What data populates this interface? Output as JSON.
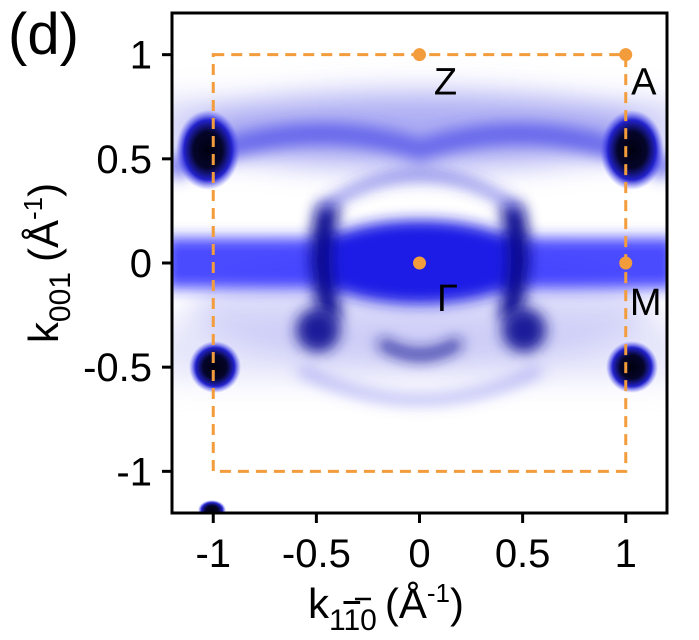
{
  "panel_label": "(d)",
  "chart_data": {
    "type": "heatmap",
    "title": "",
    "xlabel": {
      "prefix": "k",
      "subscript": "1",
      "subscript_overlined": "1",
      "subscript_suffix": "0",
      "units_open": "(Å",
      "units_exponent": "-1",
      "units_close": ")"
    },
    "ylabel": {
      "prefix": "k",
      "subscript": "001",
      "units_open": "(Å",
      "units_exponent": "-1",
      "units_close": ")"
    },
    "xlim": [
      -1.2,
      1.2
    ],
    "ylim": [
      -1.2,
      1.2
    ],
    "xticks": [
      {
        "value": -1,
        "label": "-1"
      },
      {
        "value": -0.5,
        "label": "-0.5"
      },
      {
        "value": 0,
        "label": "0"
      },
      {
        "value": 0.5,
        "label": "0.5"
      },
      {
        "value": 1,
        "label": "1"
      }
    ],
    "yticks": [
      {
        "value": 1,
        "label": "1"
      },
      {
        "value": 0.5,
        "label": "0.5"
      },
      {
        "value": 0,
        "label": "0"
      },
      {
        "value": -0.5,
        "label": "-0.5"
      },
      {
        "value": -1,
        "label": "-1"
      }
    ],
    "colormap": {
      "low": "#ffffff",
      "mid": "#3333ff",
      "high": "#00001a"
    },
    "brillouin_zone": {
      "x_range": [
        -1,
        1
      ],
      "y_range": [
        -1,
        1
      ],
      "line_style": "dashed",
      "color": "#f39c3c"
    },
    "high_symmetry_points": [
      {
        "name": "Z",
        "x": 0,
        "y": 1
      },
      {
        "name": "A",
        "x": 1,
        "y": 1
      },
      {
        "name": "Γ",
        "x": 0,
        "y": 0
      },
      {
        "name": "M",
        "x": 1,
        "y": 0
      }
    ],
    "point_color": "#f39c3c"
  }
}
